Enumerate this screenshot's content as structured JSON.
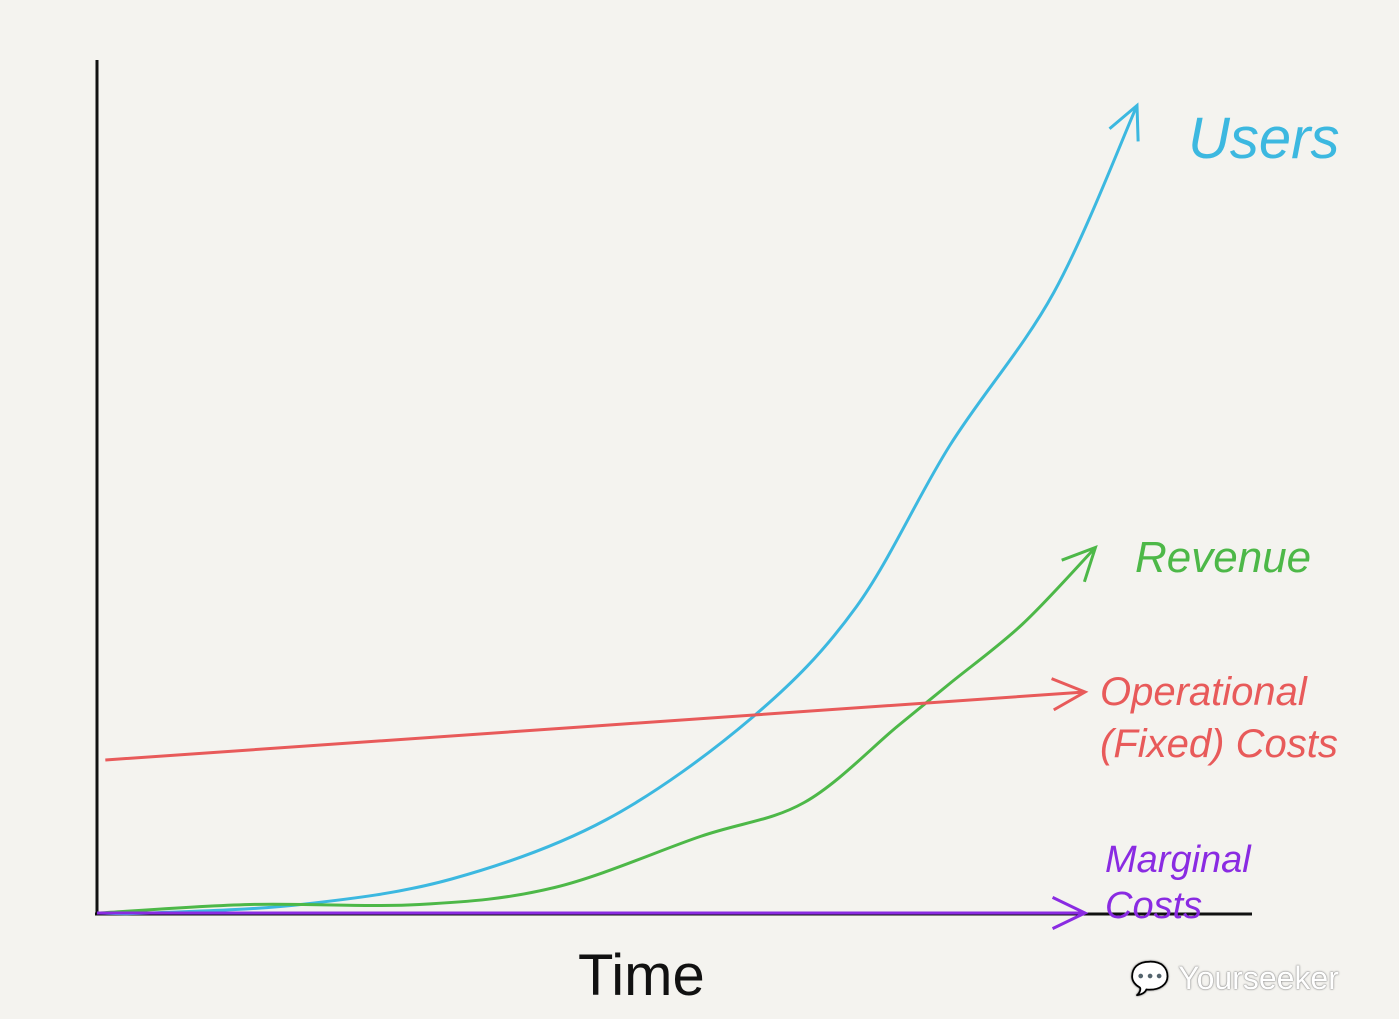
{
  "chart_data": {
    "type": "line",
    "title": "",
    "xlabel": "Time",
    "ylabel": "",
    "grid": false,
    "legend": "labels at line ends (right)",
    "series": [
      {
        "name": "Users",
        "color": "#3cb8e0",
        "x": [
          0.03,
          0.51,
          1.96,
          3.41,
          4.9,
          6.3,
          7.3,
          8.2,
          9.2,
          10.0
        ],
        "y": [
          0,
          0,
          0.1,
          0.4,
          1.1,
          2.3,
          3.6,
          5.5,
          7.3,
          9.5
        ]
      },
      {
        "name": "Revenue",
        "color": "#4db848",
        "x": [
          0.03,
          1.47,
          3.1,
          4.4,
          5.8,
          6.8,
          7.7,
          8.2,
          8.9,
          9.6
        ],
        "y": [
          0,
          0.1,
          0.1,
          0.3,
          0.9,
          1.3,
          2.2,
          2.7,
          3.4,
          4.3
        ]
      },
      {
        "name": "Operational (Fixed) Costs",
        "label_lines": [
          "Operational",
          "(Fixed) Costs"
        ],
        "color": "#e85a5a",
        "x": [
          0.08,
          9.5
        ],
        "y": [
          1.8,
          2.6
        ]
      },
      {
        "name": "Marginal Costs",
        "label_lines": [
          "Marginal",
          "Costs"
        ],
        "color": "#8a2be2",
        "x": [
          0,
          9.5
        ],
        "y": [
          0,
          0
        ]
      }
    ]
  },
  "watermark": "Yourseeker"
}
